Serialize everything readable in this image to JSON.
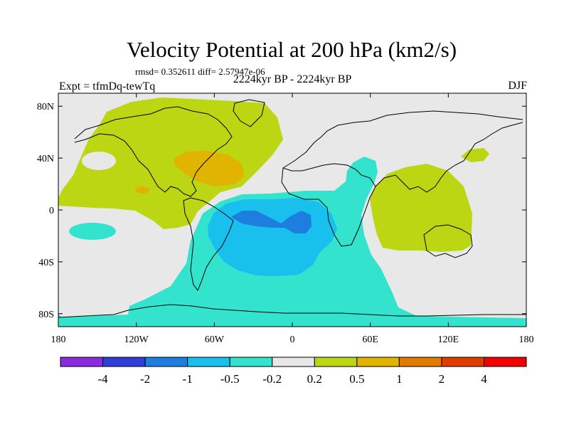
{
  "header": {
    "title": "Velocity Potential at 200 hPa (km2/s)",
    "stats": "rmsd= 0.352611 diff= 2.57947e-06",
    "period": "2224kyr BP - 2224kyr BP",
    "experiment": "Expt = tfmDq-tewTq",
    "season": "DJF"
  },
  "chart_data": {
    "type": "heatmap",
    "title": "Velocity Potential at 200 hPa (km2/s)",
    "subtitle": "2224kyr BP - 2224kyr BP",
    "annotations": [
      "rmsd= 0.352611 diff= 2.57947e-06",
      "Expt = tfmDq-tewTq",
      "DJF"
    ],
    "xlim": [
      -180,
      180
    ],
    "ylim": [
      -90,
      90
    ],
    "x_tick_labels": [
      "180",
      "120W",
      "60W",
      "0",
      "60E",
      "120E",
      "180"
    ],
    "x_tick_values": [
      -180,
      -120,
      -60,
      0,
      60,
      120,
      180
    ],
    "y_tick_labels": [
      "80N",
      "40N",
      "0",
      "40S",
      "80S"
    ],
    "y_tick_values": [
      80,
      40,
      0,
      -40,
      -80
    ],
    "colorbar": {
      "labels": [
        "-4",
        "-2",
        "-1",
        "-0.5",
        "-0.2",
        "0.2",
        "0.5",
        "1",
        "2",
        "4"
      ],
      "colors": [
        "#8a2be2",
        "#2f3fd6",
        "#1e7ee0",
        "#19c0ee",
        "#33e3cd",
        "#e8e8e8",
        "#bcd613",
        "#e0b400",
        "#e07a00",
        "#e03c00",
        "#f20000"
      ]
    },
    "regions": [
      {
        "level": "0.2 to 0.5",
        "color": "#bcd613",
        "description": "positive band over North America, North Pacific and North Atlantic"
      },
      {
        "level": "0.5 to 1",
        "color": "#e0b400",
        "description": "maximum over eastern North America / western Atlantic"
      },
      {
        "level": "0.2 to 0.5",
        "color": "#bcd613",
        "description": "positive area over Maritime Continent and western Pacific"
      },
      {
        "level": "-0.5 to -0.2",
        "color": "#33e3cd",
        "description": "negative area over South Atlantic, South America, Africa and Southern Ocean"
      },
      {
        "level": "-1 to -0.5",
        "color": "#19c0ee",
        "description": "negative center over tropical/southern Atlantic"
      },
      {
        "level": "-2 to -1",
        "color": "#1e7ee0",
        "description": "minimum over equatorial Atlantic / Africa"
      }
    ]
  }
}
